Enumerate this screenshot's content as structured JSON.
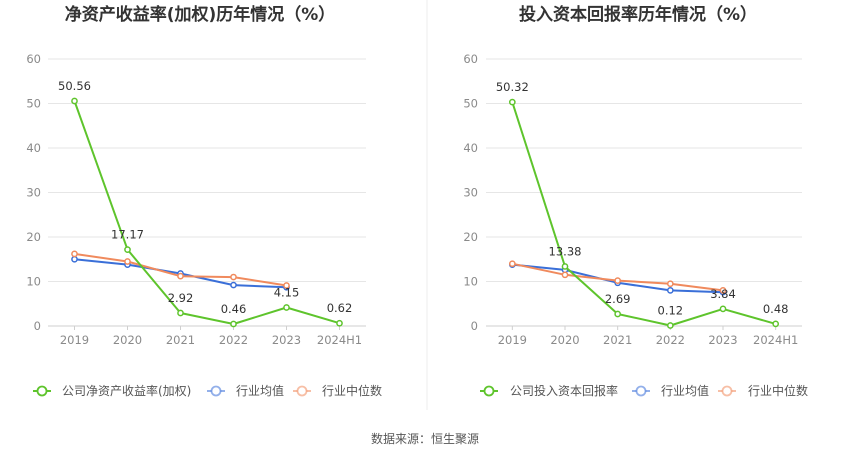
{
  "source_note": "数据来源：恒生聚源",
  "colors": {
    "company": "#5ec42c",
    "industry_avg": "#3a6fd8",
    "industry_median": "#f08a5d",
    "grid": "#e6e6e6",
    "axis": "#cfcfcf",
    "divider": "#eeeeee"
  },
  "chart_data": [
    {
      "type": "line",
      "title": "净资产收益率(加权)历年情况（%）",
      "categories": [
        "2019",
        "2020",
        "2021",
        "2022",
        "2023",
        "2024H1"
      ],
      "ylim": [
        0,
        60
      ],
      "yticks": [
        0,
        10,
        20,
        30,
        40,
        50,
        60
      ],
      "grid": true,
      "legend_position": "bottom",
      "series": [
        {
          "name": "公司净资产收益率(加权)",
          "key": "company",
          "values": [
            50.56,
            17.17,
            2.92,
            0.46,
            4.15,
            0.62
          ],
          "labels": [
            "50.56",
            "17.17",
            "2.92",
            "0.46",
            "4.15",
            "0.62"
          ]
        },
        {
          "name": "行业均值",
          "key": "industry_avg",
          "values": [
            15.0,
            13.8,
            11.8,
            9.2,
            8.7,
            null
          ]
        },
        {
          "name": "行业中位数",
          "key": "industry_median",
          "values": [
            16.2,
            14.5,
            11.2,
            11.0,
            9.1,
            null
          ]
        }
      ]
    },
    {
      "type": "line",
      "title": "投入资本回报率历年情况（%）",
      "categories": [
        "2019",
        "2020",
        "2021",
        "2022",
        "2023",
        "2024H1"
      ],
      "ylim": [
        0,
        60
      ],
      "yticks": [
        0,
        10,
        20,
        30,
        40,
        50,
        60
      ],
      "grid": true,
      "legend_position": "bottom",
      "series": [
        {
          "name": "公司投入资本回报率",
          "key": "company",
          "values": [
            50.32,
            13.38,
            2.69,
            0.12,
            3.84,
            0.48
          ],
          "labels": [
            "50.32",
            "13.38",
            "2.69",
            "0.12",
            "3.84",
            "0.48"
          ]
        },
        {
          "name": "行业均值",
          "key": "industry_avg",
          "values": [
            13.8,
            12.6,
            9.7,
            8.0,
            7.6,
            null
          ]
        },
        {
          "name": "行业中位数",
          "key": "industry_median",
          "values": [
            14.0,
            11.5,
            10.2,
            9.5,
            8.0,
            null
          ]
        }
      ]
    }
  ]
}
